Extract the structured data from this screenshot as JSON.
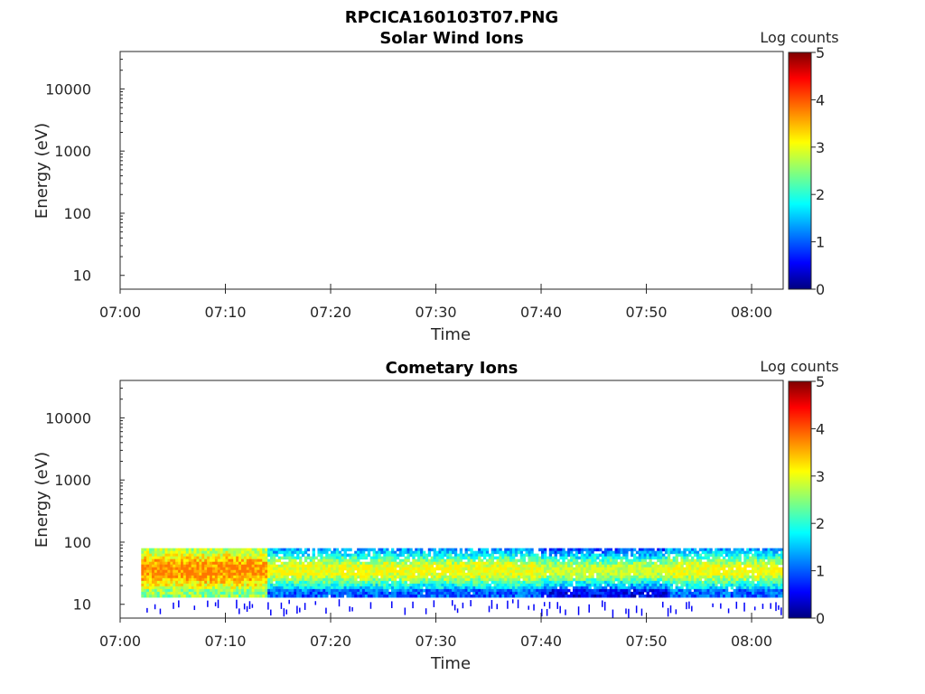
{
  "file_title": "RPCICA160103T07.PNG",
  "chart_data": [
    {
      "type": "heatmap",
      "title": "Solar Wind Ions",
      "xlabel": "Time",
      "ylabel": "Energy (eV)",
      "x_ticks": [
        "07:00",
        "07:10",
        "07:20",
        "07:30",
        "07:40",
        "07:50",
        "08:00"
      ],
      "xlim": [
        "07:00",
        "08:03"
      ],
      "y_scale": "log",
      "y_ticks": [
        "10",
        "100",
        "1000",
        "10000"
      ],
      "ylim": [
        6,
        40000
      ],
      "colorbar": {
        "label": "Log counts",
        "range": [
          0,
          5
        ],
        "ticks": [
          "0",
          "1",
          "2",
          "3",
          "4",
          "5"
        ],
        "colormap": "jet"
      },
      "has_data": false
    },
    {
      "type": "heatmap",
      "title": "Cometary Ions",
      "xlabel": "Time",
      "ylabel": "Energy (eV)",
      "x_ticks": [
        "07:00",
        "07:10",
        "07:20",
        "07:30",
        "07:40",
        "07:50",
        "08:00"
      ],
      "xlim": [
        "07:00",
        "08:03"
      ],
      "y_scale": "log",
      "y_ticks": [
        "10",
        "100",
        "1000",
        "10000"
      ],
      "ylim": [
        6,
        40000
      ],
      "colorbar": {
        "label": "Log counts",
        "range": [
          0,
          5
        ],
        "ticks": [
          "0",
          "1",
          "2",
          "3",
          "4",
          "5"
        ],
        "colormap": "jet"
      },
      "has_data": true,
      "energy_band_eV": [
        13,
        80
      ],
      "time_coverage": [
        "07:02",
        "08:03"
      ],
      "intervals": [
        {
          "start": "07:02",
          "end": "07:14",
          "peak_log_counts": 3.8,
          "band_log_counts": [
            2.5,
            3.8
          ]
        },
        {
          "start": "07:14",
          "end": "07:40",
          "peak_log_counts": 3.2,
          "band_log_counts": [
            1.0,
            3.2
          ]
        },
        {
          "start": "07:40",
          "end": "07:52",
          "peak_log_counts": 3.0,
          "band_log_counts": [
            0.5,
            3.0
          ]
        },
        {
          "start": "07:52",
          "end": "08:03",
          "peak_log_counts": 3.2,
          "band_log_counts": [
            1.0,
            3.2
          ]
        }
      ]
    }
  ]
}
